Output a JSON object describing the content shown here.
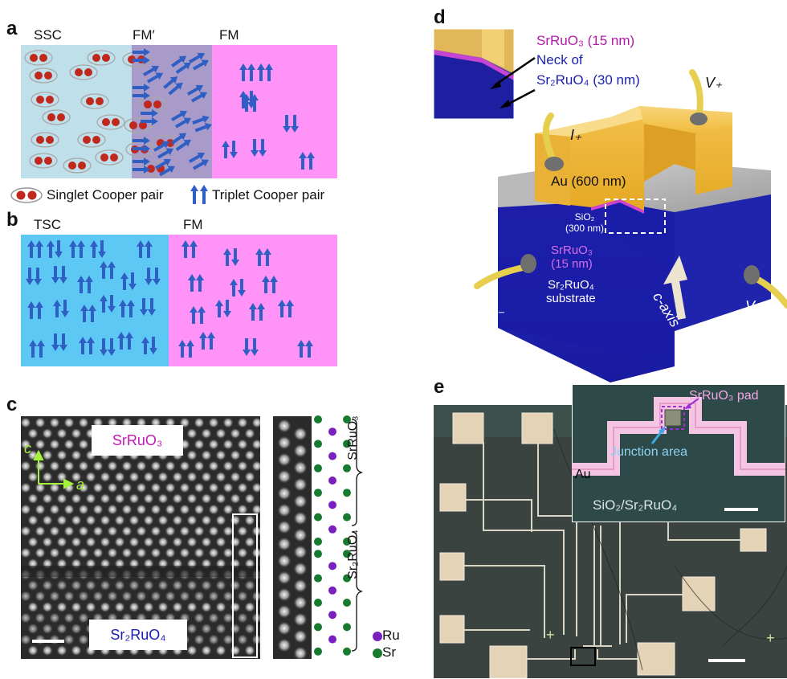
{
  "panel_a": {
    "label": "a",
    "regions": {
      "ssc": "SSC",
      "fm_prime": "FM′",
      "fm": "FM"
    }
  },
  "legend": {
    "singlet": "Singlet Cooper pair",
    "triplet": "Triplet Cooper pair"
  },
  "panel_b": {
    "label": "b",
    "regions": {
      "tsc": "TSC",
      "fm": "FM"
    }
  },
  "panel_c": {
    "label": "c",
    "top_label": "SrRuO₃",
    "bottom_label": "Sr₂RuO₄",
    "axis_c": "c",
    "axis_a": "a",
    "brace_top": "SrRuO₃",
    "brace_bottom": "Sr₂RuO₄",
    "legend_ru": "Ru",
    "legend_sr": "Sr"
  },
  "panel_d": {
    "label": "d",
    "inset_l1": "SrRuO₃ (15 nm)",
    "inset_l2": "Neck of",
    "inset_l3": "Sr₂RuO₄ (30 nm)",
    "vplus": "V₊",
    "iplus": "I₊",
    "iminus": "I₋",
    "vminus": "V₋",
    "au": "Au (600 nm)",
    "sio2_a": "SiO₂",
    "sio2_b": "(300 nm)",
    "sro_a": "SrRuO₃",
    "sro_b": "(15 nm)",
    "sub_a": "Sr₂RuO₄",
    "sub_b": "substrate",
    "caxis": "c-axis"
  },
  "panel_e": {
    "label": "e",
    "pad": "SrRuO₃ pad",
    "junction": "Junction area",
    "au": "Au",
    "substrate": "SiO₂/Sr₂RuO₄"
  },
  "colors": {
    "ssc_bg": "#bfe0ea",
    "fmprime_bg": "#a89ac9",
    "fm_bg": "#ff93f7",
    "tsc_bg": "#5ec8f5",
    "pair_red": "#c0281c",
    "arrow_blue": "#2f5fc4",
    "ru_purple": "#7a1fc0",
    "sr_green": "#177a2e",
    "substrate_blue": "#1c1fb0",
    "gold": "#f4c24a"
  }
}
